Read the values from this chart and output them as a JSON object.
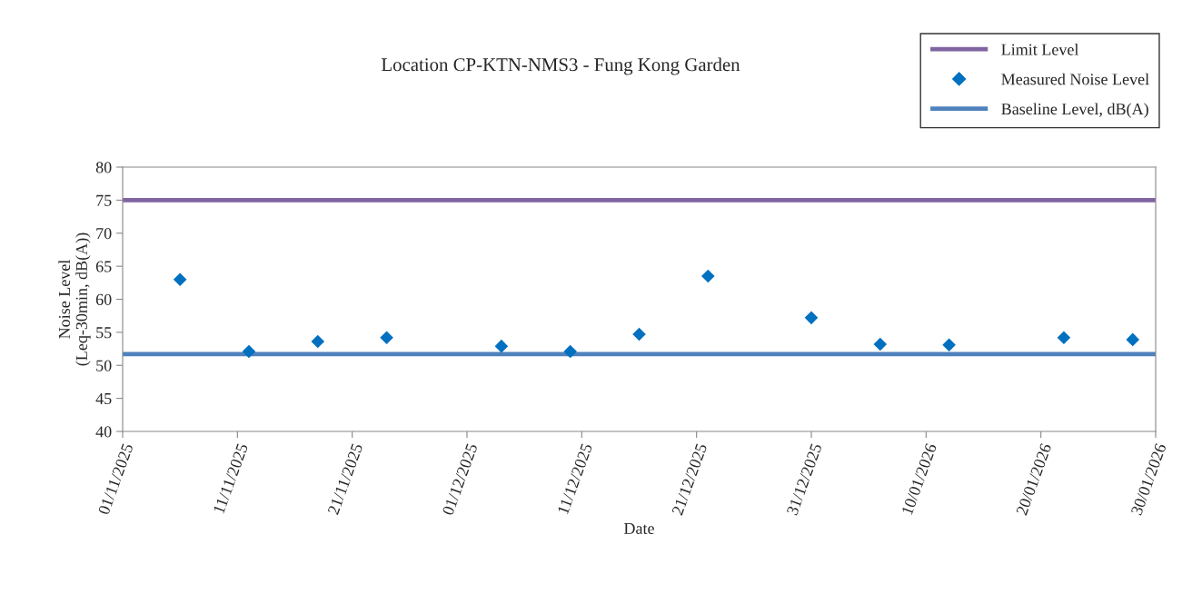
{
  "chart_data": {
    "type": "scatter",
    "title": "Location CP-KTN-NMS3 - Fung Kong Garden",
    "xlabel": "Date",
    "ylabel": "Noise Level\n(Leq-30min, dB(A))",
    "x": [
      "2025-11-06",
      "2025-11-12",
      "2025-11-18",
      "2025-11-24",
      "2025-12-04",
      "2025-12-10",
      "2025-12-16",
      "2025-12-22",
      "2025-12-31",
      "2026-01-06",
      "2026-01-12",
      "2026-01-22",
      "2026-01-28"
    ],
    "series": [
      {
        "name": "Measured Noise Level",
        "color": "#0070c0",
        "values": [
          63.0,
          52.1,
          53.6,
          54.2,
          52.9,
          52.1,
          54.7,
          63.5,
          57.2,
          53.2,
          53.1,
          54.2,
          53.9
        ]
      }
    ],
    "marker": "diamond",
    "ref_lines": [
      {
        "axis": "y",
        "value": 75,
        "label": "Limit Level",
        "color": "#8064a2",
        "line_style": "solid"
      },
      {
        "axis": "y",
        "value": 51.7,
        "label": "Baseline Level, dB(A)",
        "color": "#4f81bd",
        "line_style": "solid"
      }
    ],
    "ylim": [
      40,
      80
    ],
    "yticks": [
      40,
      45,
      50,
      55,
      60,
      65,
      70,
      75,
      80
    ],
    "xlim": [
      "2025-11-01",
      "2026-01-30"
    ],
    "xticks": [
      {
        "value": "2025-11-01",
        "label": "01/11/2025"
      },
      {
        "value": "2025-11-11",
        "label": "11/11/2025"
      },
      {
        "value": "2025-11-21",
        "label": "21/11/2025"
      },
      {
        "value": "2025-12-01",
        "label": "01/12/2025"
      },
      {
        "value": "2025-12-11",
        "label": "11/12/2025"
      },
      {
        "value": "2025-12-21",
        "label": "21/12/2025"
      },
      {
        "value": "2025-12-31",
        "label": "31/12/2025"
      },
      {
        "value": "2026-01-10",
        "label": "10/01/2026"
      },
      {
        "value": "2026-01-20",
        "label": "20/01/2026"
      },
      {
        "value": "2026-01-30",
        "label": "30/01/2026"
      }
    ],
    "grid": false,
    "legend": "top right"
  }
}
